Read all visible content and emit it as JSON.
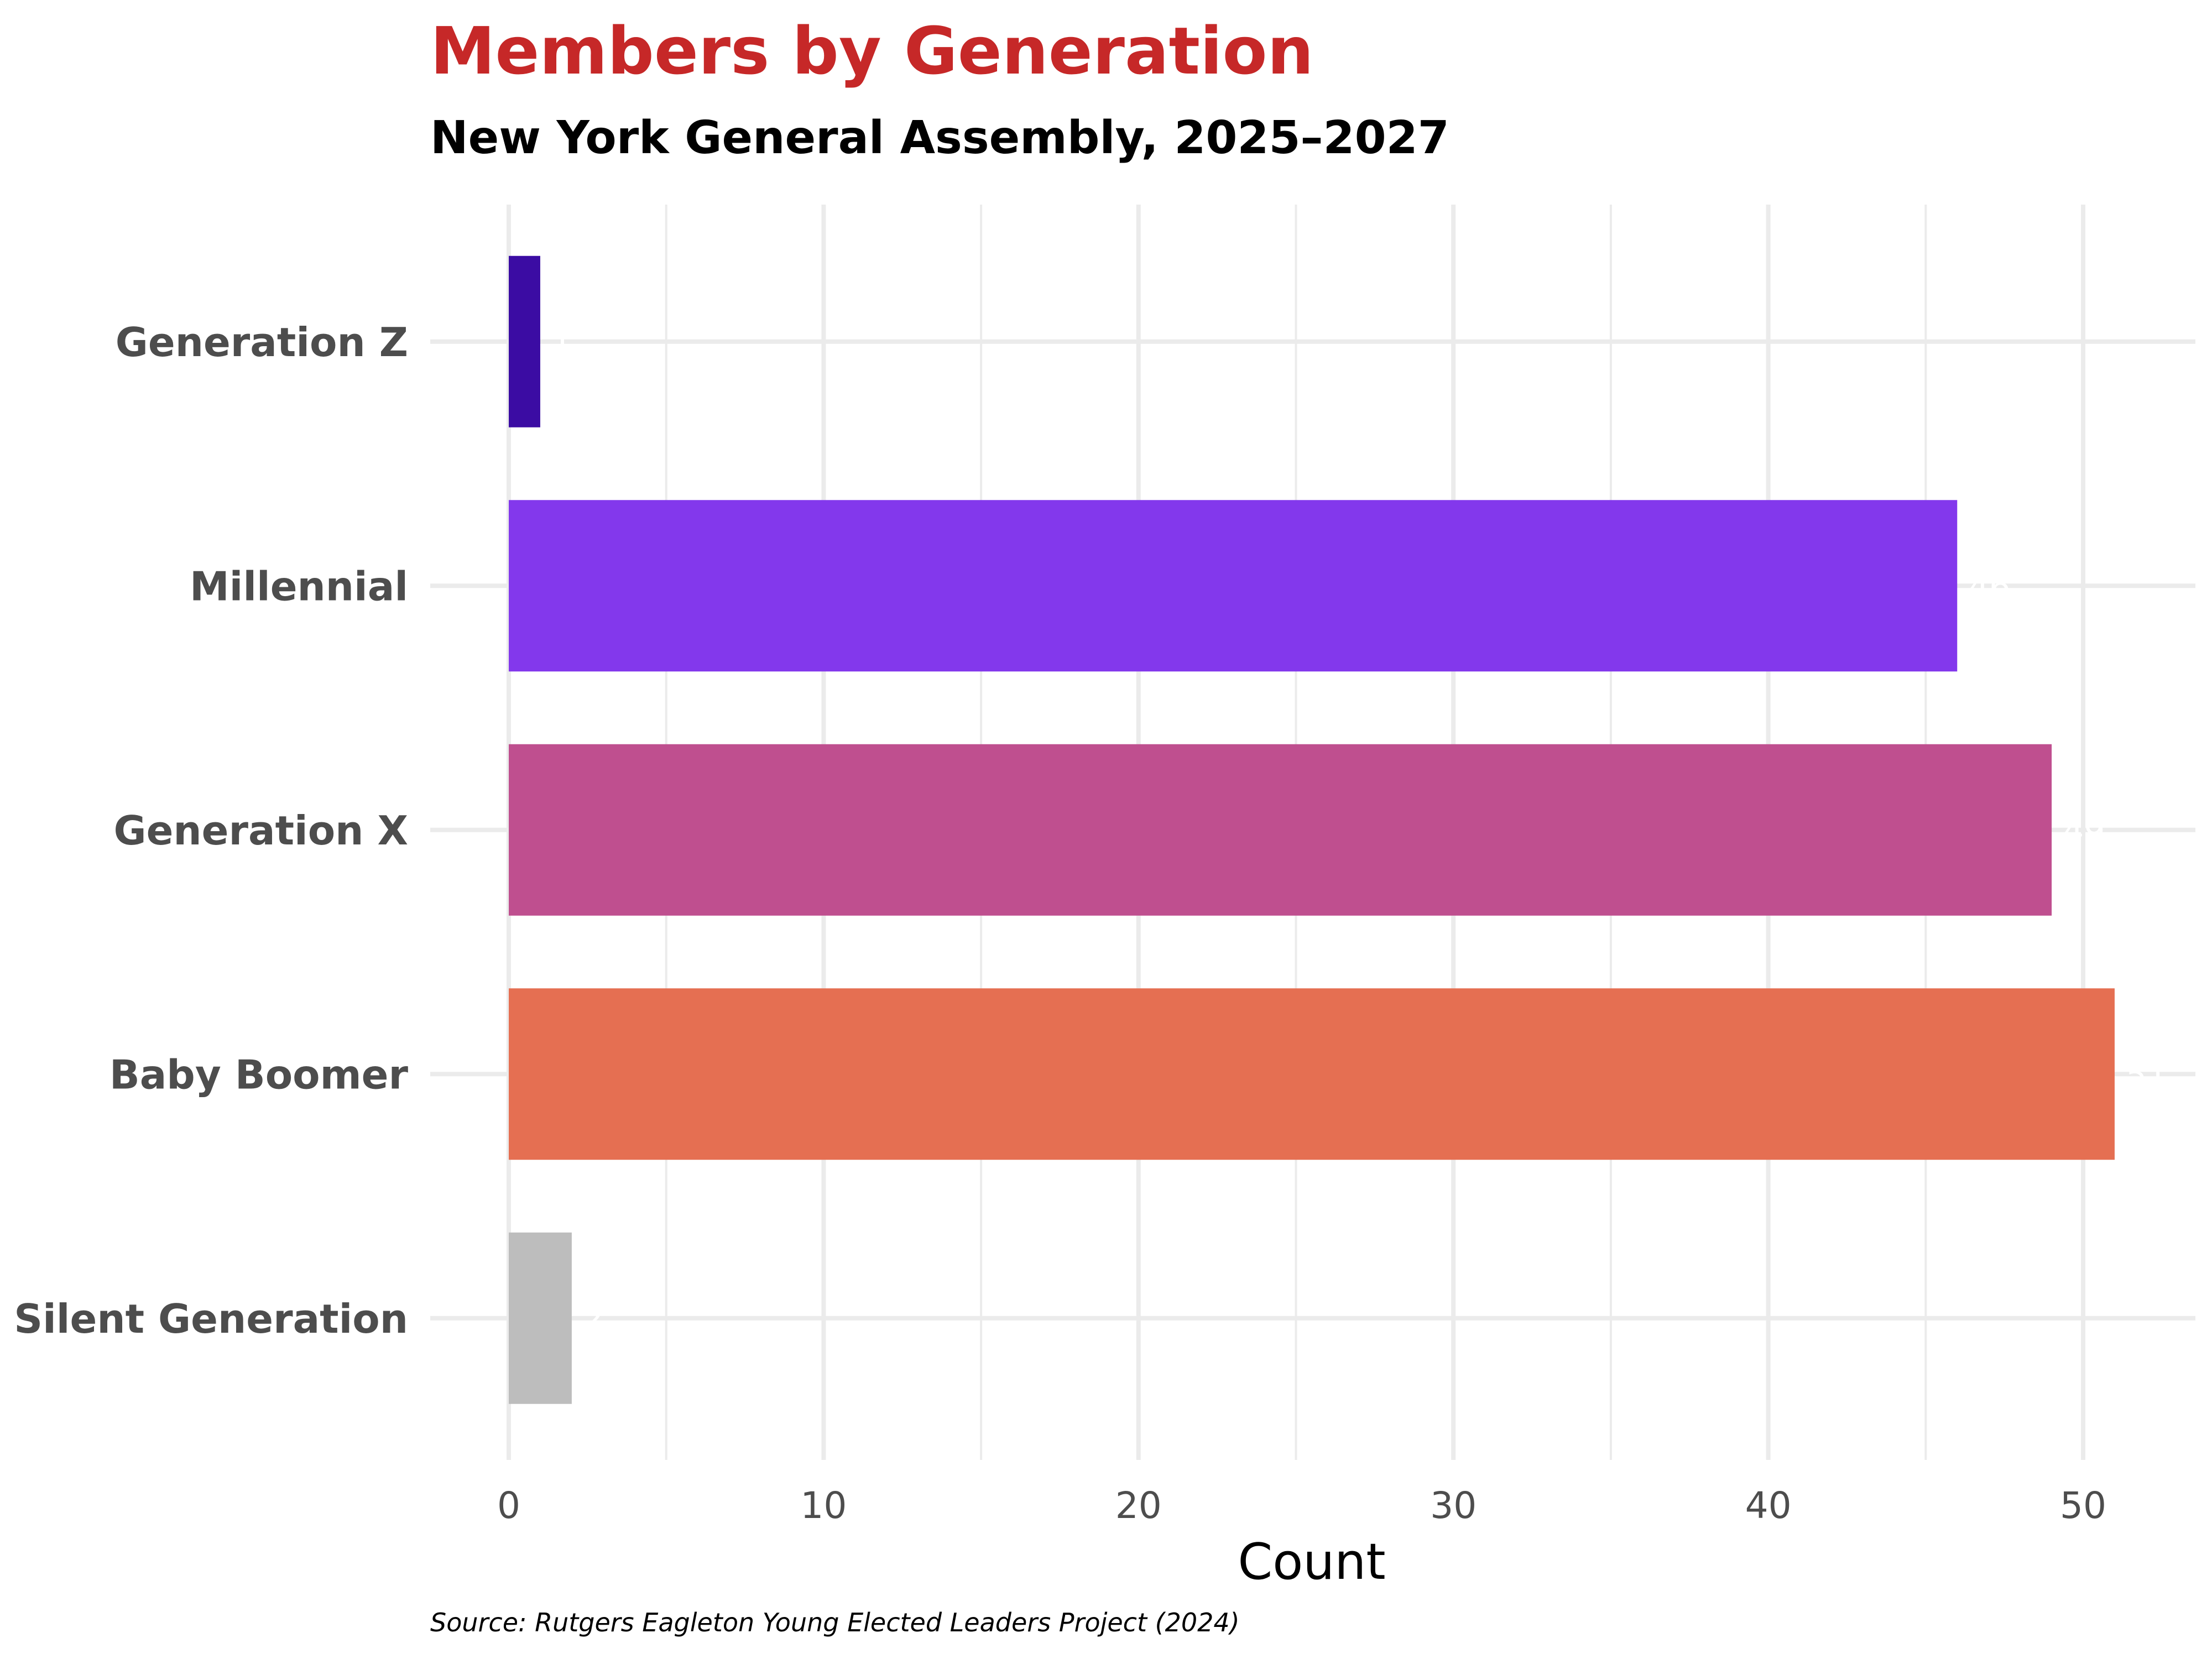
{
  "chart_data": {
    "type": "bar",
    "orientation": "horizontal",
    "title": "Members by Generation",
    "subtitle": "New York General Assembly, 2025–2027",
    "xlabel": "Count",
    "ylabel": "",
    "caption": "Source: Rutgers Eagleton Young Elected Leaders Project (2024)",
    "categories": [
      "Generation Z",
      "Millennial",
      "Generation X",
      "Baby Boomer",
      "Silent Generation"
    ],
    "values": [
      1,
      46,
      49,
      51,
      2
    ],
    "value_labels": [
      "1",
      "46",
      "49",
      "51",
      "2"
    ],
    "colors": [
      "#3b0ca3",
      "#8338ec",
      "#bf4f8f",
      "#e56f52",
      "#bdbdbd"
    ],
    "xlim": [
      -2.5,
      53.5
    ],
    "xticks": [
      0,
      10,
      20,
      30,
      40,
      50
    ],
    "xtick_labels": [
      "0",
      "10",
      "20",
      "30",
      "40",
      "50"
    ],
    "grid": true,
    "title_color": "#c62828",
    "legend": "none"
  }
}
